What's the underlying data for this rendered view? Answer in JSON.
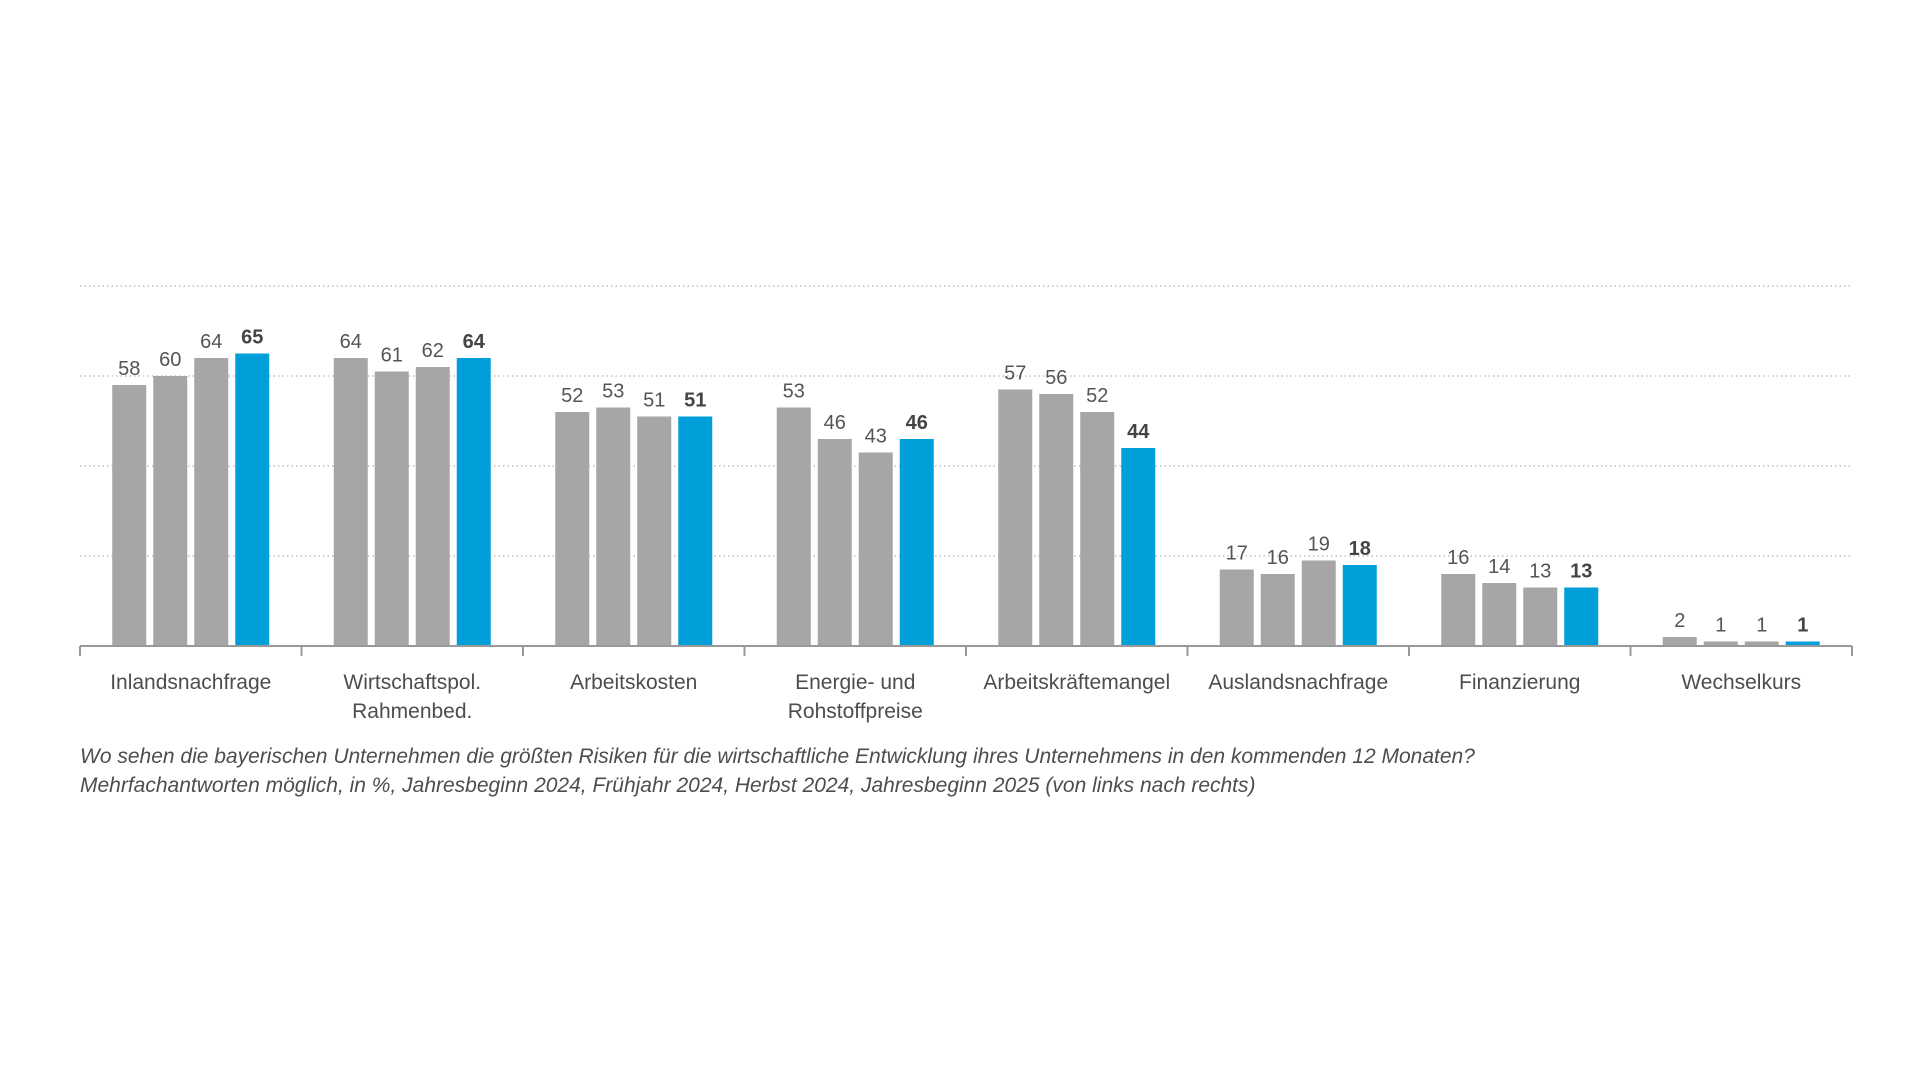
{
  "chart_data": {
    "type": "bar",
    "categories": [
      [
        "Inlandsnachfrage"
      ],
      [
        "Wirtschaftspol.",
        "Rahmenbed."
      ],
      [
        "Arbeitskosten"
      ],
      [
        "Energie- und",
        "Rohstoffpreise"
      ],
      [
        "Arbeitskräftemangel"
      ],
      [
        "Auslandsnachfrage"
      ],
      [
        "Finanzierung"
      ],
      [
        "Wechselkurs"
      ]
    ],
    "series": [
      {
        "values": [
          58,
          64,
          52,
          53,
          57,
          17,
          16,
          2
        ],
        "color": "#a6a6a6"
      },
      {
        "values": [
          60,
          61,
          53,
          46,
          56,
          16,
          14,
          1
        ],
        "color": "#a6a6a6"
      },
      {
        "values": [
          64,
          62,
          51,
          43,
          52,
          19,
          13,
          1
        ],
        "color": "#a6a6a6"
      },
      {
        "values": [
          65,
          64,
          51,
          46,
          44,
          18,
          13,
          1
        ],
        "color": "#009fda",
        "highlight": true
      }
    ],
    "ylim": [
      0,
      80
    ],
    "gridlines": [
      20,
      40,
      60,
      80
    ],
    "grid": "dotted",
    "legend": "none"
  },
  "caption": {
    "line1": "Wo sehen die bayerischen Unternehmen die größten Risiken für die wirtschaftliche Entwicklung ihres Unternehmens in den kommenden 12 Monaten?",
    "line2": "Mehrfachantworten möglich, in %, Jahresbeginn 2024, Frühjahr 2024, Herbst 2024, Jahresbeginn 2025 (von links nach rechts)"
  },
  "colors": {
    "bar_grey": "#a6a6a6",
    "bar_highlight": "#009fda",
    "axis": "#999999",
    "grid": "#b3b3b3",
    "text": "#555555"
  }
}
